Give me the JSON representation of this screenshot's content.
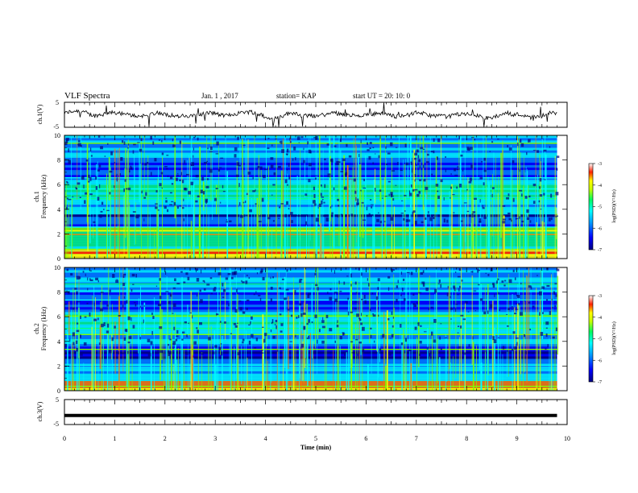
{
  "header": {
    "title": "VLF Spectra",
    "date": "Jan. 1 , 2017",
    "station": "station= KAP",
    "start_ut": "start UT =   20: 10: 0"
  },
  "chart_data": {
    "type": "heatmap",
    "x": {
      "label": "Time (min)",
      "range": [
        0,
        10
      ],
      "ticks": [
        "0",
        "1",
        "2",
        "3",
        "4",
        "5",
        "6",
        "7",
        "8",
        "9",
        "10"
      ]
    },
    "panels": [
      {
        "id": "ch1-waveform",
        "type": "line",
        "ylabel": "ch.1(V)",
        "ylim": [
          -5,
          5
        ],
        "yticks": [
          "5",
          "-5"
        ],
        "description_level": "noisy waveform oscillating roughly between -1 and 2 V, ending near 9.8 min"
      },
      {
        "id": "ch1-spectrogram",
        "type": "heatmap",
        "ylabel": [
          "ch.1",
          "Frequency (kHz)"
        ],
        "ylim": [
          0,
          10
        ],
        "yticks": [
          "0",
          "2",
          "4",
          "6",
          "8",
          "10"
        ],
        "data_end_min": 9.8,
        "colorbar": {
          "label": "log(PSD)(V²/Hz)",
          "range": [
            -7,
            -3
          ],
          "ticks": [
            "-3",
            "-4",
            "-5",
            "-6",
            "-7"
          ]
        }
      },
      {
        "id": "ch2-spectrogram",
        "type": "heatmap",
        "ylabel": [
          "ch.2",
          "Frequency (kHz)"
        ],
        "ylim": [
          0,
          10
        ],
        "yticks": [
          "0",
          "2",
          "4",
          "6",
          "8",
          "10"
        ],
        "data_end_min": 9.8,
        "colorbar": {
          "label": "log(PSD)(V²/Hz)",
          "range": [
            -7,
            -3
          ],
          "ticks": [
            "-3",
            "-4",
            "-5",
            "-6",
            "-7"
          ]
        }
      },
      {
        "id": "ch3-waveform",
        "type": "line",
        "ylabel": "ch.3(V)",
        "ylim": [
          -5,
          5
        ],
        "yticks": [
          "5",
          "-5"
        ],
        "values": [
          [
            0,
            -1.4
          ],
          [
            9.8,
            -1.4
          ]
        ]
      }
    ],
    "colormap": [
      "#000080",
      "#0000ff",
      "#0080ff",
      "#00ffff",
      "#00ff80",
      "#80ff00",
      "#ffff00",
      "#ff8000",
      "#ff0000",
      "#ffffff"
    ]
  }
}
